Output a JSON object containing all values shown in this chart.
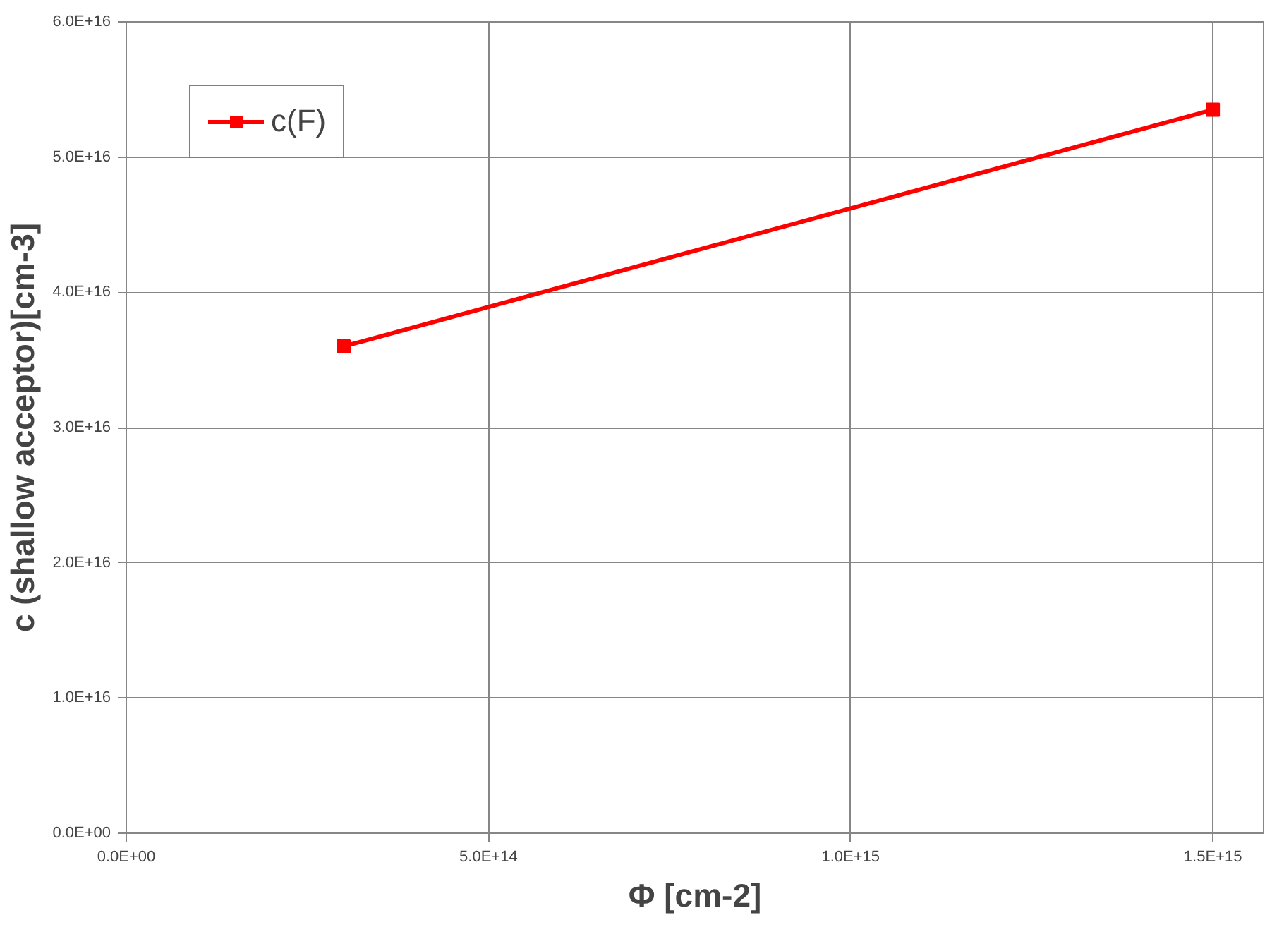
{
  "chart_data": {
    "type": "line",
    "xlabel": "Φ [cm-2]",
    "ylabel": "c (shallow acceptor)[cm-3]",
    "x": [
      300000000000000.0,
      1500000000000000.0
    ],
    "series": [
      {
        "name": "c(F)",
        "color": "#ff0000",
        "values": [
          3.6e+16,
          5.35e+16
        ]
      }
    ],
    "xlim": [
      0,
      1570000000000000.0
    ],
    "xticks": [
      {
        "value": 0,
        "label": "0.0E+00"
      },
      {
        "value": 500000000000000.0,
        "label": "5.0E+14"
      },
      {
        "value": 1000000000000000.0,
        "label": "1.0E+15"
      },
      {
        "value": 1500000000000000.0,
        "label": "1.5E+15"
      }
    ],
    "ylim": [
      0,
      6e+16
    ],
    "yticks": [
      {
        "value": 0,
        "label": "0.0E+00"
      },
      {
        "value": 1e+16,
        "label": "1.0E+16"
      },
      {
        "value": 2e+16,
        "label": "2.0E+16"
      },
      {
        "value": 3e+16,
        "label": "3.0E+16"
      },
      {
        "value": 4e+16,
        "label": "4.0E+16"
      },
      {
        "value": 5e+16,
        "label": "5.0E+16"
      },
      {
        "value": 6e+16,
        "label": "6.0E+16"
      }
    ],
    "grid": true,
    "legend": "top left",
    "marker": "square",
    "line_style": "solid"
  }
}
